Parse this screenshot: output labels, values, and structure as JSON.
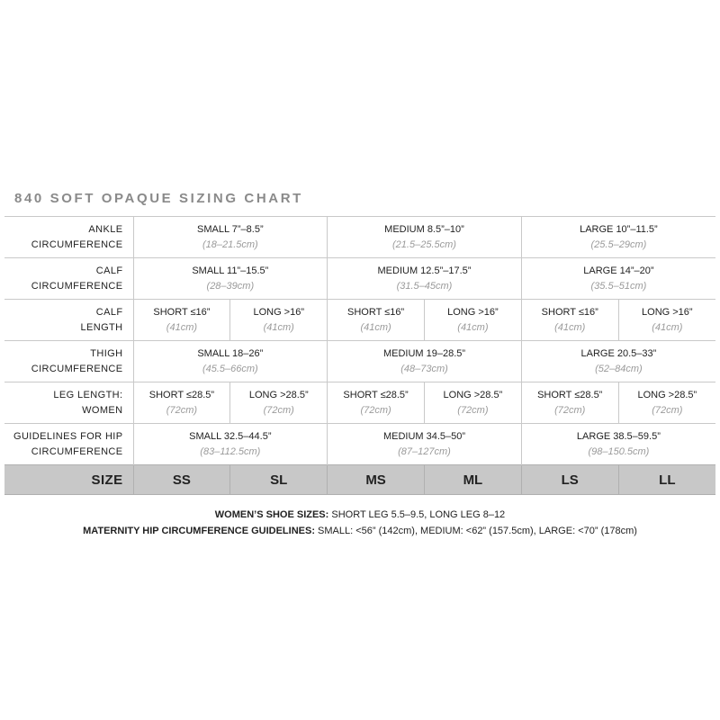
{
  "title": "840 SOFT OPAQUE SIZING CHART",
  "rows": [
    {
      "label1": "ANKLE",
      "label2": "CIRCUMFERENCE",
      "cells": [
        {
          "main": "SMALL 7”–8.5”",
          "sub": "(18–21.5cm)"
        },
        {
          "main": "MEDIUM 8.5”–10”",
          "sub": "(21.5–25.5cm)"
        },
        {
          "main": "LARGE 10”–11.5”",
          "sub": "(25.5–29cm)"
        }
      ]
    },
    {
      "label1": "CALF",
      "label2": "CIRCUMFERENCE",
      "cells": [
        {
          "main": "SMALL 11”–15.5”",
          "sub": "(28–39cm)"
        },
        {
          "main": "MEDIUM 12.5”–17.5”",
          "sub": "(31.5–45cm)"
        },
        {
          "main": "LARGE 14”–20”",
          "sub": "(35.5–51cm)"
        }
      ]
    },
    {
      "label1": "CALF",
      "label2": "LENGTH",
      "cells": [
        {
          "main": "SHORT ≤16”",
          "sub": "(41cm)"
        },
        {
          "main": "LONG >16”",
          "sub": "(41cm)"
        },
        {
          "main": "SHORT ≤16”",
          "sub": "(41cm)"
        },
        {
          "main": "LONG >16”",
          "sub": "(41cm)"
        },
        {
          "main": "SHORT ≤16”",
          "sub": "(41cm)"
        },
        {
          "main": "LONG >16”",
          "sub": "(41cm)"
        }
      ]
    },
    {
      "label1": "THIGH",
      "label2": "CIRCUMFERENCE",
      "cells": [
        {
          "main": "SMALL 18–26”",
          "sub": "(45.5–66cm)"
        },
        {
          "main": "MEDIUM 19–28.5”",
          "sub": "(48–73cm)"
        },
        {
          "main": "LARGE 20.5–33”",
          "sub": "(52–84cm)"
        }
      ]
    },
    {
      "label1": "LEG LENGTH:",
      "label2": "WOMEN",
      "cells": [
        {
          "main": "SHORT ≤28.5”",
          "sub": "(72cm)"
        },
        {
          "main": "LONG >28.5”",
          "sub": "(72cm)"
        },
        {
          "main": "SHORT ≤28.5”",
          "sub": "(72cm)"
        },
        {
          "main": "LONG >28.5”",
          "sub": "(72cm)"
        },
        {
          "main": "SHORT ≤28.5”",
          "sub": "(72cm)"
        },
        {
          "main": "LONG >28.5”",
          "sub": "(72cm)"
        }
      ]
    },
    {
      "label1": "GUIDELINES FOR HIP",
      "label2": "CIRCUMFERENCE",
      "cells": [
        {
          "main": "SMALL 32.5–44.5”",
          "sub": "(83–112.5cm)"
        },
        {
          "main": "MEDIUM 34.5–50”",
          "sub": "(87–127cm)"
        },
        {
          "main": "LARGE 38.5–59.5”",
          "sub": "(98–150.5cm)"
        }
      ]
    }
  ],
  "size_row": {
    "label": "SIZE",
    "sizes": [
      "SS",
      "SL",
      "MS",
      "ML",
      "LS",
      "LL"
    ]
  },
  "notes": [
    {
      "bold": "WOMEN’S SHOE SIZES:",
      "text": " SHORT LEG 5.5–9.5, LONG LEG 8–12"
    },
    {
      "bold": "MATERNITY HIP CIRCUMFERENCE GUIDELINES:",
      "text": " SMALL: <56” (142cm), MEDIUM: <62” (157.5cm), LARGE: <70” (178cm)"
    }
  ],
  "colors": {
    "size_row_bg": "#c8c8c8",
    "title": "#8a8a8a",
    "metric_text": "#9a9a9a"
  }
}
